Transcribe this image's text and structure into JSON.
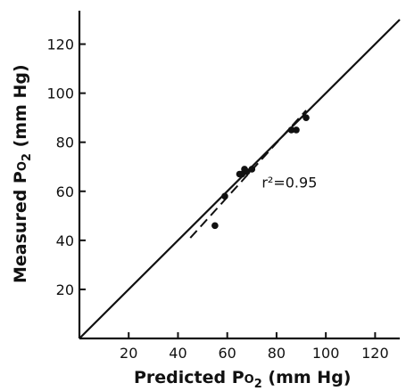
{
  "chart_data": {
    "type": "scatter",
    "xlabel": {
      "main": "Predicted  P",
      "sub": "O",
      "sub2": "2",
      "units": " (mm  Hg)"
    },
    "ylabel": {
      "main": "Measured  P",
      "sub": "O",
      "sub2": "2",
      "units": " (mm  Hg)"
    },
    "xlim": [
      0,
      130
    ],
    "ylim": [
      0,
      130
    ],
    "x_ticks": [
      20,
      40,
      60,
      80,
      100,
      120
    ],
    "y_ticks": [
      20,
      40,
      60,
      80,
      100,
      120
    ],
    "x_tick_labels": [
      "20",
      "40",
      "60",
      "80",
      "100",
      "120"
    ],
    "y_tick_labels": [
      "20",
      "40",
      "60",
      "80",
      "100",
      "120"
    ],
    "points": [
      {
        "x": 55,
        "y": 46
      },
      {
        "x": 59,
        "y": 58
      },
      {
        "x": 65,
        "y": 67
      },
      {
        "x": 66,
        "y": 67
      },
      {
        "x": 67,
        "y": 69
      },
      {
        "x": 68,
        "y": 68
      },
      {
        "x": 70,
        "y": 69
      },
      {
        "x": 86,
        "y": 85
      },
      {
        "x": 88,
        "y": 85
      },
      {
        "x": 92,
        "y": 90
      }
    ],
    "identity_line": {
      "from": [
        0,
        0
      ],
      "to": [
        130,
        130
      ]
    },
    "regression_line": {
      "from": [
        45,
        41
      ],
      "to": [
        92,
        93
      ]
    },
    "annotation": {
      "text": "r²=0.95"
    }
  }
}
